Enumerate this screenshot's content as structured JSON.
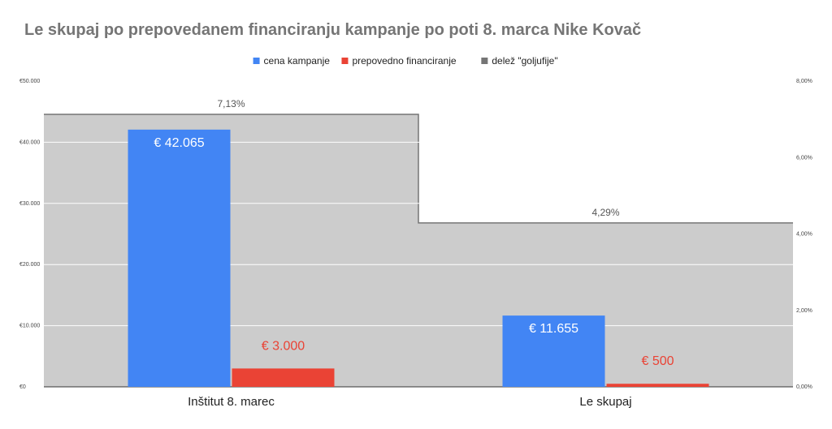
{
  "chart_data": {
    "type": "bar",
    "title": "Le skupaj po prepovedanem financiranju kampanje po poti 8. marca Nike Kovač",
    "categories": [
      "Inštitut 8. marec",
      "Le skupaj"
    ],
    "series": [
      {
        "name": "cena kampanje",
        "type": "bar",
        "axis": "left",
        "color": "#4285f4",
        "values": [
          42065,
          11655
        ],
        "labels": [
          "€ 42.065",
          "€ 11.655"
        ],
        "label_color": "#ffffff"
      },
      {
        "name": "prepovedno financiranje",
        "type": "bar",
        "axis": "left",
        "color": "#ea4335",
        "values": [
          3000,
          500
        ],
        "labels": [
          "€ 3.000",
          "€ 500"
        ],
        "label_color": "#ea4335"
      },
      {
        "name": "delež \"goljufije\"",
        "type": "stepped-area",
        "axis": "right",
        "color": "#757575",
        "fill": "#cccccc",
        "values": [
          7.13,
          4.29
        ],
        "labels": [
          "7,13%",
          "4,29%"
        ]
      }
    ],
    "ylim_left": [
      0,
      50000
    ],
    "yticks_left": [
      "€0",
      "€10.000",
      "€20.000",
      "€30.000",
      "€40.000",
      "€50.000"
    ],
    "ylim_right": [
      0,
      8
    ],
    "yticks_right": [
      "0,00%",
      "2,00%",
      "4,00%",
      "6,00%",
      "8,00%"
    ],
    "legend_position": "top",
    "grid": true
  }
}
